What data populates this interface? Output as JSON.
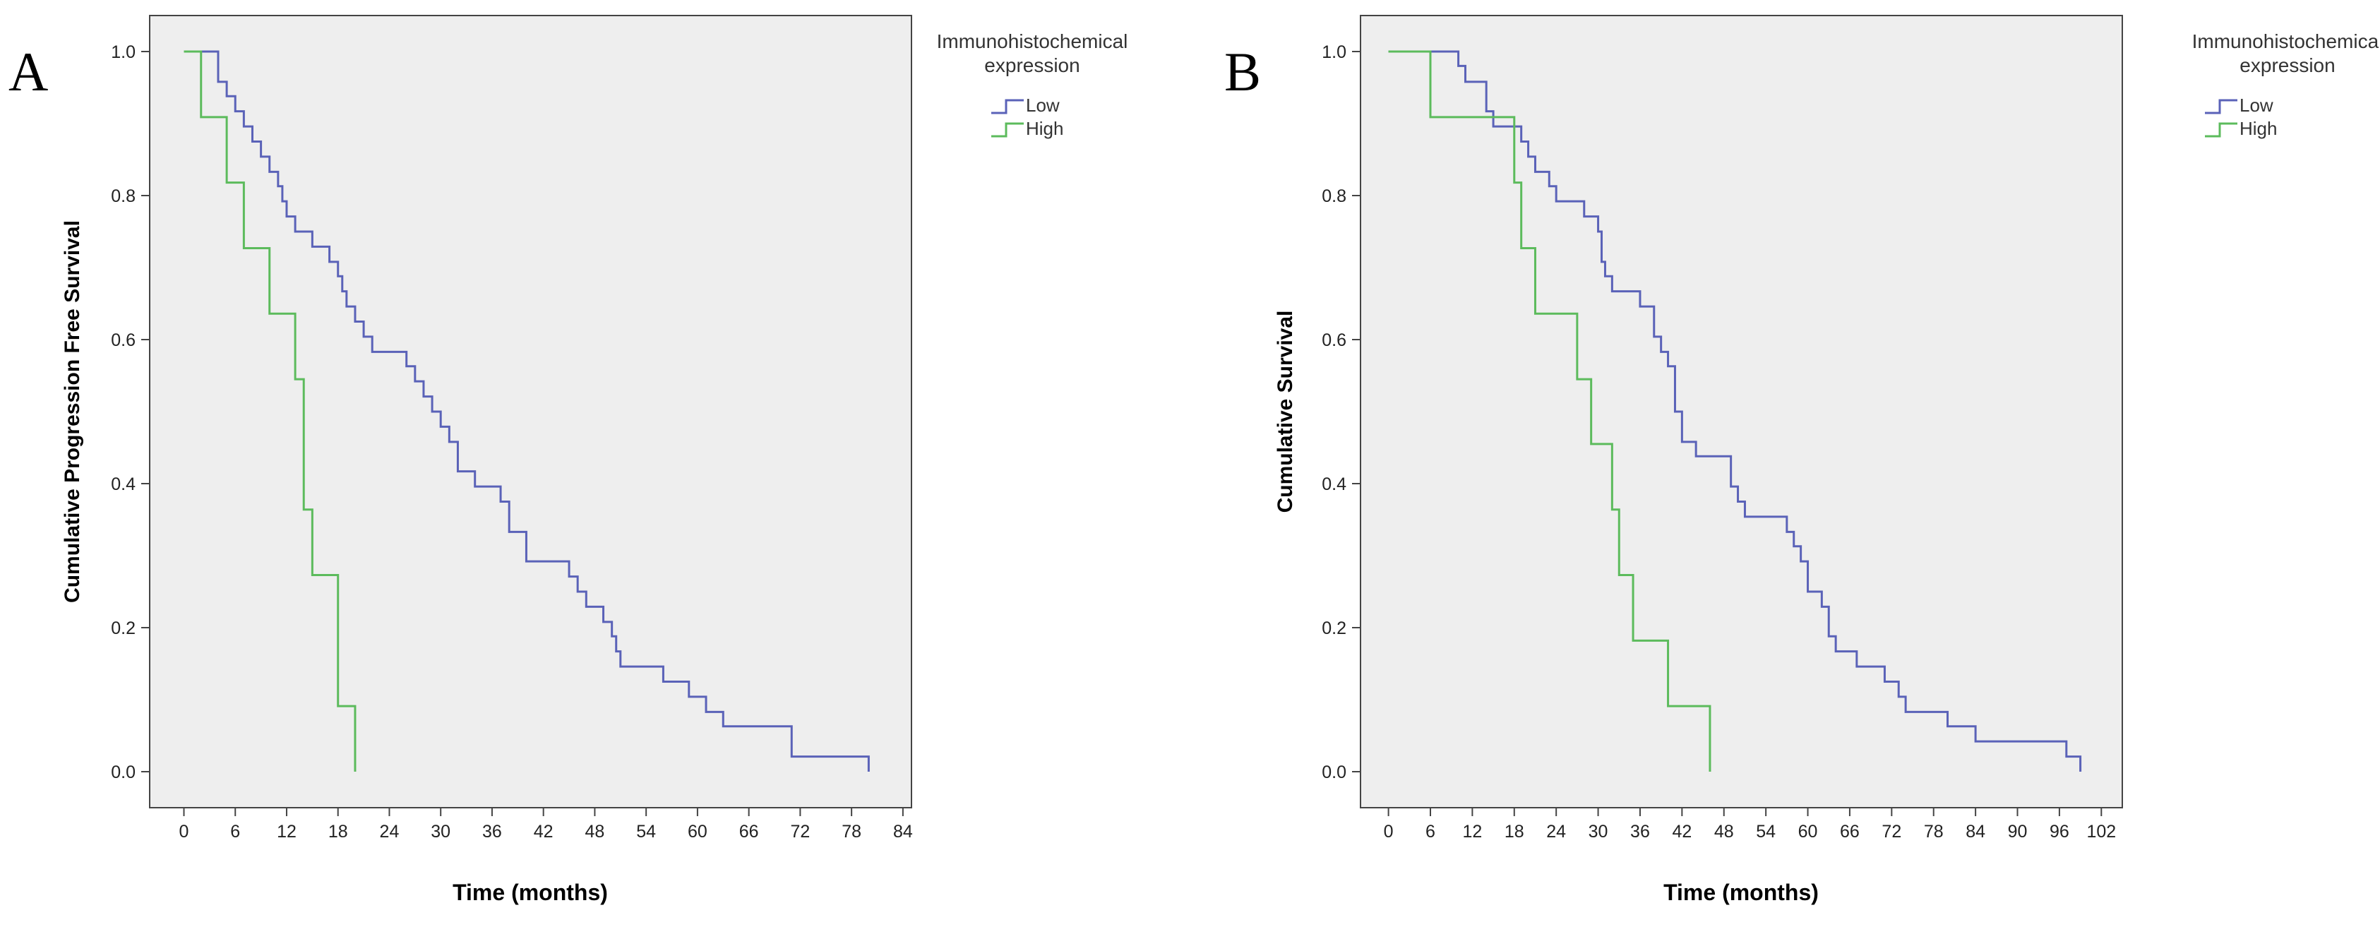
{
  "chart_data": [
    {
      "type": "line",
      "panel_label": "A",
      "xlabel": "Time (months)",
      "ylabel": "Cumulative Progression Free Survival",
      "xlim": [
        -4,
        85
      ],
      "ylim": [
        -0.05,
        1.05
      ],
      "xticks": [
        "0",
        "6",
        "12",
        "18",
        "24",
        "30",
        "36",
        "42",
        "48",
        "54",
        "60",
        "66",
        "72",
        "78",
        "84"
      ],
      "yticks": [
        "0.0",
        "0.2",
        "0.4",
        "0.6",
        "0.8",
        "1.0"
      ],
      "legend": {
        "title_line1": "Immunohistochemical",
        "title_line2": "expression",
        "position": "outside-right"
      },
      "series": [
        {
          "name": "Low",
          "color": "#5a62b8",
          "steps": [
            [
              0,
              1.0
            ],
            [
              4,
              0.958
            ],
            [
              5,
              0.938
            ],
            [
              6,
              0.917
            ],
            [
              7,
              0.896
            ],
            [
              8,
              0.875
            ],
            [
              9,
              0.854
            ],
            [
              10,
              0.833
            ],
            [
              11,
              0.813
            ],
            [
              11.5,
              0.792
            ],
            [
              12,
              0.771
            ],
            [
              13,
              0.75
            ],
            [
              15,
              0.729
            ],
            [
              17,
              0.708
            ],
            [
              18,
              0.688
            ],
            [
              18.5,
              0.667
            ],
            [
              19,
              0.646
            ],
            [
              20,
              0.625
            ],
            [
              21,
              0.604
            ],
            [
              22,
              0.583
            ],
            [
              26,
              0.563
            ],
            [
              27,
              0.542
            ],
            [
              28,
              0.521
            ],
            [
              29,
              0.5
            ],
            [
              30,
              0.479
            ],
            [
              31,
              0.458
            ],
            [
              32,
              0.417
            ],
            [
              34,
              0.396
            ],
            [
              37,
              0.375
            ],
            [
              38,
              0.333
            ],
            [
              40,
              0.292
            ],
            [
              45,
              0.271
            ],
            [
              46,
              0.25
            ],
            [
              47,
              0.229
            ],
            [
              49,
              0.208
            ],
            [
              50,
              0.188
            ],
            [
              50.5,
              0.167
            ],
            [
              51,
              0.146
            ],
            [
              56,
              0.125
            ],
            [
              59,
              0.104
            ],
            [
              61,
              0.083
            ],
            [
              63,
              0.063
            ],
            [
              71,
              0.021
            ],
            [
              80,
              0.0
            ]
          ],
          "end": 80
        },
        {
          "name": "High",
          "color": "#5cbb5c",
          "steps": [
            [
              0,
              1.0
            ],
            [
              2,
              0.909
            ],
            [
              5,
              0.818
            ],
            [
              7,
              0.727
            ],
            [
              10,
              0.636
            ],
            [
              13,
              0.545
            ],
            [
              14,
              0.364
            ],
            [
              15,
              0.273
            ],
            [
              18,
              0.091
            ],
            [
              20,
              0.0
            ]
          ],
          "end": 20
        }
      ]
    },
    {
      "type": "line",
      "panel_label": "B",
      "xlabel": "Time (months)",
      "ylabel": "Cumulative Survival",
      "xlim": [
        -4,
        105
      ],
      "ylim": [
        -0.05,
        1.05
      ],
      "xticks": [
        "0",
        "6",
        "12",
        "18",
        "24",
        "30",
        "36",
        "42",
        "48",
        "54",
        "60",
        "66",
        "72",
        "78",
        "84",
        "90",
        "96",
        "102"
      ],
      "yticks": [
        "0.0",
        "0.2",
        "0.4",
        "0.6",
        "0.8",
        "1.0"
      ],
      "legend": {
        "title_line1": "Immunohistochemical",
        "title_line2": "expression",
        "position": "outside-right"
      },
      "series": [
        {
          "name": "Low",
          "color": "#5a62b8",
          "steps": [
            [
              0,
              1.0
            ],
            [
              10,
              0.98
            ],
            [
              11,
              0.958
            ],
            [
              14,
              0.917
            ],
            [
              15,
              0.896
            ],
            [
              19,
              0.875
            ],
            [
              20,
              0.854
            ],
            [
              21,
              0.833
            ],
            [
              23,
              0.813
            ],
            [
              24,
              0.792
            ],
            [
              28,
              0.771
            ],
            [
              30,
              0.75
            ],
            [
              30.5,
              0.708
            ],
            [
              31,
              0.688
            ],
            [
              32,
              0.667
            ],
            [
              36,
              0.646
            ],
            [
              38,
              0.604
            ],
            [
              39,
              0.583
            ],
            [
              40,
              0.563
            ],
            [
              41,
              0.5
            ],
            [
              42,
              0.458
            ],
            [
              44,
              0.438
            ],
            [
              49,
              0.396
            ],
            [
              50,
              0.375
            ],
            [
              51,
              0.354
            ],
            [
              57,
              0.333
            ],
            [
              58,
              0.313
            ],
            [
              59,
              0.292
            ],
            [
              60,
              0.25
            ],
            [
              62,
              0.229
            ],
            [
              63,
              0.188
            ],
            [
              64,
              0.167
            ],
            [
              67,
              0.146
            ],
            [
              71,
              0.125
            ],
            [
              73,
              0.104
            ],
            [
              74,
              0.083
            ],
            [
              80,
              0.063
            ],
            [
              84,
              0.042
            ],
            [
              97,
              0.021
            ],
            [
              99,
              0.0
            ]
          ],
          "end": 99
        },
        {
          "name": "High",
          "color": "#5cbb5c",
          "steps": [
            [
              0,
              1.0
            ],
            [
              6,
              0.909
            ],
            [
              18,
              0.818
            ],
            [
              19,
              0.727
            ],
            [
              21,
              0.636
            ],
            [
              27,
              0.545
            ],
            [
              29,
              0.455
            ],
            [
              32,
              0.364
            ],
            [
              33,
              0.273
            ],
            [
              35,
              0.182
            ],
            [
              40,
              0.091
            ],
            [
              46,
              0.0
            ]
          ],
          "end": 46
        }
      ]
    }
  ]
}
